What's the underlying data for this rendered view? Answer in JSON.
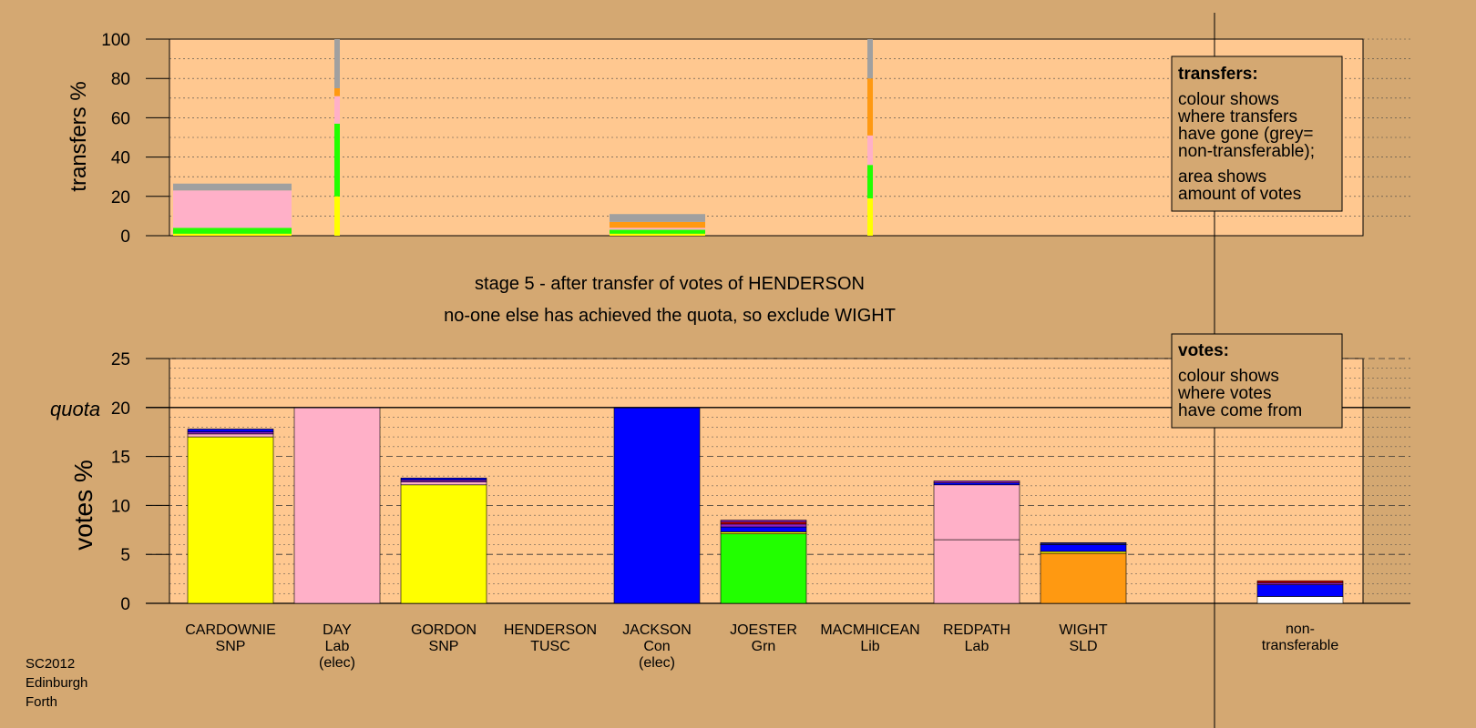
{
  "chart_data": [
    {
      "type": "bar",
      "ylabel": "transfers %",
      "ylim": [
        0,
        100
      ],
      "yticks": [
        0,
        20,
        40,
        60,
        80,
        100
      ],
      "colors": {
        "SNP": "#ffff00",
        "Lab": "#ffb0c8",
        "Con": "#0000ff",
        "Grn": "#22ff00",
        "Lib": "#ff9911",
        "SLD": "#ff9911",
        "TUSC": "#cc0000",
        "nontransferable": "#a0a0a0",
        "purple": "#9020c0",
        "navy": "#202080"
      },
      "columns": [
        {
          "candidate": "CARDOWNIE",
          "width": "full",
          "segments": [
            {
              "color": "#ffff00",
              "to": 1
            },
            {
              "color": "#22ff00",
              "to": 4
            },
            {
              "color": "#ffb0c8",
              "to": 23
            },
            {
              "color": "#a0a0a0",
              "to": 26.5
            }
          ]
        },
        {
          "candidate": "DAY",
          "width": "thin",
          "segments": [
            {
              "color": "#ffff00",
              "to": 20
            },
            {
              "color": "#22ff00",
              "to": 57
            },
            {
              "color": "#ffb0c8",
              "to": 71
            },
            {
              "color": "#ff9911",
              "to": 75
            },
            {
              "color": "#a0a0a0",
              "to": 100
            }
          ]
        },
        {
          "candidate": "JACKSON",
          "width": "full",
          "segments": [
            {
              "color": "#ffff00",
              "to": 1
            },
            {
              "color": "#22ff00",
              "to": 3
            },
            {
              "color": "#ffb0c8",
              "to": 4
            },
            {
              "color": "#ff9911",
              "to": 7
            },
            {
              "color": "#a0a0a0",
              "to": 11
            }
          ]
        },
        {
          "candidate": "MACMHICEAN",
          "width": "thin",
          "segments": [
            {
              "color": "#ffff00",
              "to": 19
            },
            {
              "color": "#22ff00",
              "to": 36
            },
            {
              "color": "#ffb0c8",
              "to": 51
            },
            {
              "color": "#ff9911",
              "to": 80
            },
            {
              "color": "#a0a0a0",
              "to": 100
            }
          ]
        }
      ]
    },
    {
      "type": "bar",
      "ylabel": "votes %",
      "ylim": [
        0,
        25
      ],
      "yticks": [
        0,
        5,
        10,
        15,
        20,
        25
      ],
      "quota": 20,
      "quota_label": "quota",
      "stage_text": "stage 5 - after transfer of votes of HENDERSON",
      "action_text": "no-one else has achieved the quota, so exclude WIGHT",
      "categories": [
        {
          "name": "CARDOWNIE",
          "party": "SNP",
          "status": ""
        },
        {
          "name": "DAY",
          "party": "Lab",
          "status": "(elec)"
        },
        {
          "name": "GORDON",
          "party": "SNP",
          "status": ""
        },
        {
          "name": "HENDERSON",
          "party": "TUSC",
          "status": ""
        },
        {
          "name": "JACKSON",
          "party": "Con",
          "status": "(elec)"
        },
        {
          "name": "JOESTER",
          "party": "Grn",
          "status": ""
        },
        {
          "name": "MACMHICEAN",
          "party": "Lib",
          "status": ""
        },
        {
          "name": "REDPATH",
          "party": "Lab",
          "status": ""
        },
        {
          "name": "WIGHT",
          "party": "SLD",
          "status": ""
        }
      ],
      "nontransferable_label": [
        "non-",
        "transferable"
      ],
      "stacks": [
        [
          {
            "color": "#ffff00",
            "to": 17
          },
          {
            "color": "#ffb0c8",
            "to": 17.3
          },
          {
            "color": "#9020c0",
            "to": 17.5
          },
          {
            "color": "#0000ff",
            "to": 17.8
          }
        ],
        [
          {
            "color": "#ffb0c8",
            "to": 20
          }
        ],
        [
          {
            "color": "#ffff00",
            "to": 12.1
          },
          {
            "color": "#ffb0c8",
            "to": 12.4
          },
          {
            "color": "#9020c0",
            "to": 12.6
          },
          {
            "color": "#0000ff",
            "to": 12.8
          }
        ],
        [],
        [
          {
            "color": "#0000ff",
            "to": 20
          }
        ],
        [
          {
            "color": "#22ff00",
            "to": 7.1
          },
          {
            "color": "#ffff00",
            "to": 7.3
          },
          {
            "color": "#0000ff",
            "to": 7.8
          },
          {
            "color": "#9020c0",
            "to": 8.1
          },
          {
            "color": "#cc0000",
            "to": 8.3
          },
          {
            "color": "#9020c0",
            "to": 8.5
          }
        ],
        [],
        [
          {
            "color": "#ffb0c8",
            "to": 6.5
          },
          {
            "color": "#ffb0c8",
            "to": 12.1
          },
          {
            "color": "#0000ff",
            "to": 12.3
          },
          {
            "color": "#9020c0",
            "to": 12.5
          }
        ],
        [
          {
            "color": "#ff9911",
            "to": 5.1
          },
          {
            "color": "#ffff00",
            "to": 5.3
          },
          {
            "color": "#0000ff",
            "to": 6
          },
          {
            "color": "#202080",
            "to": 6.2
          }
        ]
      ],
      "nontransferable_stack": [
        {
          "color": "#ffffff",
          "to": 0.7
        },
        {
          "color": "#0000ff",
          "to": 1.9
        },
        {
          "color": "#9020c0",
          "to": 2.1
        },
        {
          "color": "#cc0000",
          "to": 2.3
        }
      ]
    }
  ],
  "legend_transfers": {
    "title": "transfers:",
    "lines1": [
      "colour shows",
      "where transfers",
      "have gone (grey=",
      "non-transferable);"
    ],
    "lines2": [
      "area shows",
      "amount of votes"
    ]
  },
  "legend_votes": {
    "title": "votes:",
    "lines": [
      "colour shows",
      "where votes",
      "have come from"
    ]
  },
  "footer": [
    "SC2012",
    "Edinburgh",
    "Forth"
  ]
}
